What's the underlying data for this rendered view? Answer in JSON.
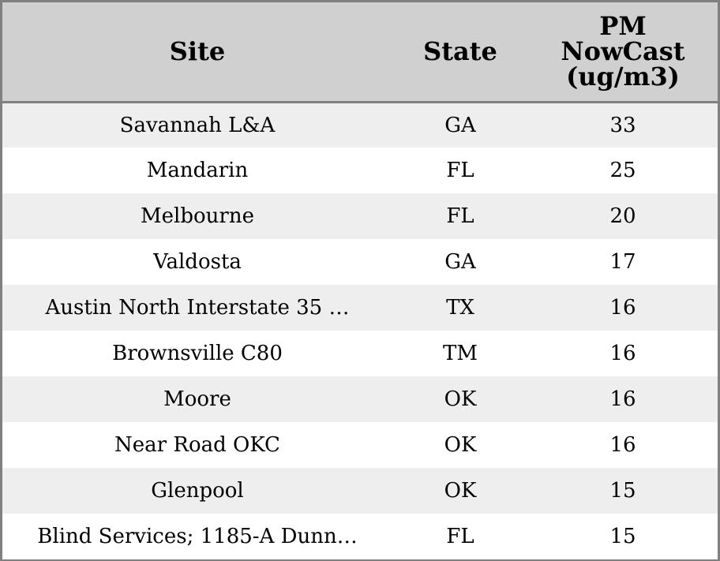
{
  "colors": {
    "header_bg": "#d0d0d0",
    "row_alt_bg": "#eeeeee",
    "row_bg": "#ffffff",
    "border": "#808080"
  },
  "columns": {
    "site": "Site",
    "state": "State",
    "pm": [
      "PM",
      "NowCast",
      "(ug/m3)"
    ]
  },
  "rows": [
    {
      "site": "Savannah L&A",
      "state": "GA",
      "pm": "33"
    },
    {
      "site": "Mandarin",
      "state": "FL",
      "pm": "25"
    },
    {
      "site": "Melbourne",
      "state": "FL",
      "pm": "20"
    },
    {
      "site": "Valdosta",
      "state": "GA",
      "pm": "17"
    },
    {
      "site": "Austin North Interstate 35 …",
      "state": "TX",
      "pm": "16"
    },
    {
      "site": "Brownsville C80",
      "state": "TM",
      "pm": "16"
    },
    {
      "site": "Moore",
      "state": "OK",
      "pm": "16"
    },
    {
      "site": "Near Road OKC",
      "state": "OK",
      "pm": "16"
    },
    {
      "site": "Glenpool",
      "state": "OK",
      "pm": "15"
    },
    {
      "site": "Blind Services; 1185-A Dunn…",
      "state": "FL",
      "pm": "15"
    }
  ]
}
